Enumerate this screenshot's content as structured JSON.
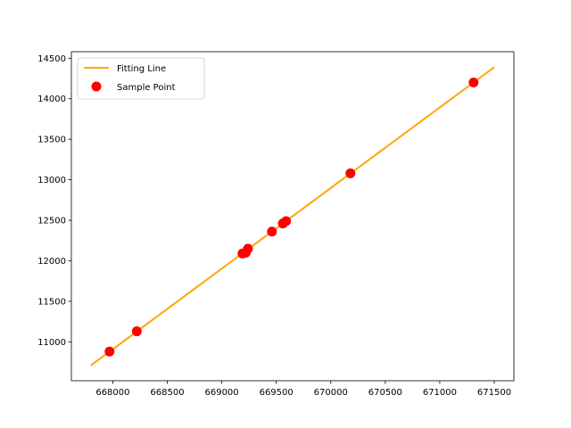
{
  "chart_data": {
    "type": "scatter",
    "title": "",
    "xlabel": "",
    "ylabel": "",
    "xlim": [
      667620,
      671680
    ],
    "ylim": [
      10520,
      14580
    ],
    "x_ticks": [
      668000,
      668500,
      669000,
      669500,
      670000,
      670500,
      671000,
      671500
    ],
    "y_ticks": [
      11000,
      11500,
      12000,
      12500,
      13000,
      13500,
      14000,
      14500
    ],
    "grid": false,
    "legend_position": "top-left",
    "series": [
      {
        "name": "Fitting Line",
        "kind": "line",
        "color": "#ffa500",
        "x": [
          667800,
          671500
        ],
        "y": [
          10710,
          14390
        ]
      },
      {
        "name": "Sample Point",
        "kind": "scatter",
        "color": "#ff0000",
        "x": [
          667970,
          668220,
          669190,
          669220,
          669240,
          669460,
          669560,
          669590,
          670180,
          671310
        ],
        "y": [
          10880,
          11130,
          12090,
          12100,
          12150,
          12360,
          12460,
          12490,
          13080,
          14200
        ]
      }
    ]
  }
}
